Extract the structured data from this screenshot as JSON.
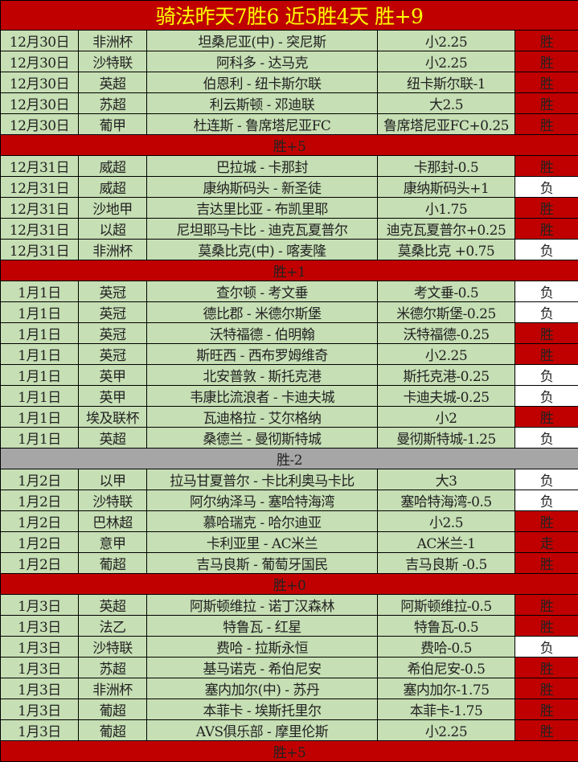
{
  "title": "骑法昨天7胜6  近5胜4天  胜+9",
  "colors": {
    "title_bg": "#c00000",
    "title_text": "#ffff00",
    "row_bg": "#c6dfb4",
    "win_bg": "#c00000",
    "loss_bg": "#ffffff",
    "summary_red": "#c00000",
    "summary_grey": "#a6a6a6"
  },
  "sections": [
    {
      "rows": [
        [
          "12月30日",
          "非洲杯",
          "坦桑尼亚(中) - 突尼斯",
          "小2.25",
          "胜"
        ],
        [
          "12月30日",
          "沙特联",
          "阿科多 - 达马克",
          "小2.25",
          "胜"
        ],
        [
          "12月30日",
          "英超",
          "伯恩利 - 纽卡斯尔联",
          "纽卡斯尔联-1",
          "胜"
        ],
        [
          "12月30日",
          "苏超",
          "利云斯顿 - 邓迪联",
          "大2.5",
          "胜"
        ],
        [
          "12月30日",
          "葡甲",
          "杜连斯 - 鲁席塔尼亚FC",
          "鲁席塔尼亚FC+0.25",
          "胜"
        ]
      ],
      "summary": "胜+5",
      "summary_color": "#c00000"
    },
    {
      "rows": [
        [
          "12月31日",
          "威超",
          "巴拉城 - 卡那封",
          "卡那封-0.5",
          "胜"
        ],
        [
          "12月31日",
          "威超",
          "康纳斯码头 - 新圣徒",
          "康纳斯码头+1",
          "负"
        ],
        [
          "12月31日",
          "沙地甲",
          "吉达里比亚 - 布凯里耶",
          "小1.75",
          "胜"
        ],
        [
          "12月31日",
          "以超",
          "尼坦耶马卡比 - 迪克瓦夏普尔",
          "迪克瓦夏普尔+0.25",
          "胜"
        ],
        [
          "12月31日",
          "非洲杯",
          "莫桑比克(中) - 喀麦隆",
          "莫桑比克 +0.75",
          "负"
        ]
      ],
      "summary": "胜+1",
      "summary_color": "#c00000"
    },
    {
      "rows": [
        [
          "1月1日",
          "英冠",
          "查尔顿 - 考文垂",
          "考文垂-0.5",
          "负"
        ],
        [
          "1月1日",
          "英冠",
          "德比郡 - 米德尔斯堡",
          "米德尔斯堡-0.25",
          "负"
        ],
        [
          "1月1日",
          "英冠",
          "沃特福德 - 伯明翰",
          "沃特福德-0.25",
          "胜"
        ],
        [
          "1月1日",
          "英冠",
          "斯旺西 - 西布罗姆维奇",
          "小2.25",
          "胜"
        ],
        [
          "1月1日",
          "英甲",
          "北安普敦 - 斯托克港",
          "斯托克港-0.25",
          "负"
        ],
        [
          "1月1日",
          "英甲",
          "韦康比流浪者 - 卡迪夫城",
          "卡迪夫城-0.25",
          "负"
        ],
        [
          "1月1日",
          "埃及联杯",
          "瓦迪格拉 - 艾尔格纳",
          "小2",
          "胜"
        ],
        [
          "1月1日",
          "英超",
          "桑德兰 - 曼彻斯特城",
          "曼彻斯特城-1.25",
          "负"
        ]
      ],
      "summary": "胜-2",
      "summary_color": "#a6a6a6"
    },
    {
      "rows": [
        [
          "1月2日",
          "以甲",
          "拉马甘夏普尔 - 卡比利奥马卡比",
          "大3",
          "负"
        ],
        [
          "1月2日",
          "沙特联",
          "阿尔纳泽马 - 塞哈特海湾",
          "塞哈特海湾-0.5",
          "负"
        ],
        [
          "1月2日",
          "巴林超",
          "慕哈瑞克 - 哈尔迪亚",
          "小2.5",
          "胜"
        ],
        [
          "1月2日",
          "意甲",
          "卡利亚里 - AC米兰",
          "AC米兰-1",
          "走"
        ],
        [
          "1月2日",
          "葡超",
          "吉马良斯 - 葡萄牙国民",
          "吉马良斯 -0.5",
          "胜"
        ]
      ],
      "summary": "胜+0",
      "summary_color": "#c00000"
    },
    {
      "rows": [
        [
          "1月3日",
          "英超",
          "阿斯顿维拉 - 诺丁汉森林",
          "阿斯顿维拉-0.5",
          "胜"
        ],
        [
          "1月3日",
          "法乙",
          "特鲁瓦 - 红星",
          "特鲁瓦-0.5",
          "胜"
        ],
        [
          "1月3日",
          "沙特联",
          "费哈 - 拉斯永恒",
          "费哈-0.5",
          "负"
        ],
        [
          "1月3日",
          "苏超",
          "基马诺克 - 希伯尼安",
          "希伯尼安-0.5",
          "胜"
        ],
        [
          "1月3日",
          "非洲杯",
          "塞内加尔(中) - 苏丹",
          "塞内加尔-1.75",
          "胜"
        ],
        [
          "1月3日",
          "葡超",
          "本菲卡 - 埃斯托里尔",
          "本菲卡-1.75",
          "胜"
        ],
        [
          "1月3日",
          "葡超",
          "AVS俱乐部 - 摩里伦斯",
          "小2.25",
          "胜"
        ]
      ],
      "summary": "胜+5",
      "summary_color": "#c00000"
    }
  ]
}
